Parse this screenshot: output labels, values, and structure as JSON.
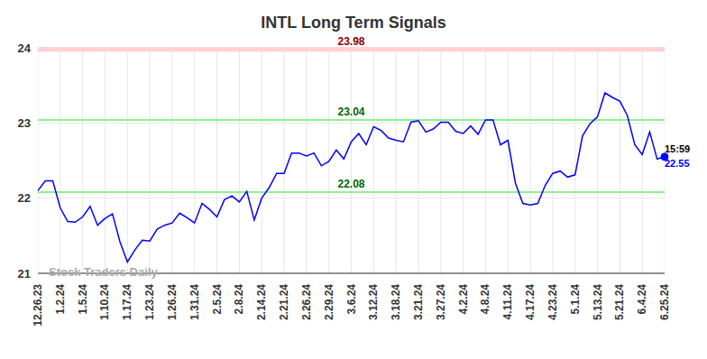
{
  "chart_data": {
    "type": "line",
    "title": "INTL Long Term Signals",
    "watermark": "Stock Traders Daily",
    "color": "#0000ff",
    "grid": true,
    "ylim": [
      21,
      24
    ],
    "yticks": [
      21,
      22,
      23,
      24
    ],
    "categories": [
      "12.26.23",
      null,
      null,
      "1.2.24",
      null,
      null,
      "1.5.24",
      null,
      null,
      "1.10.24",
      null,
      null,
      "1.17.24",
      null,
      null,
      "1.23.24",
      null,
      null,
      "1.26.24",
      null,
      null,
      "1.31.24",
      null,
      null,
      "2.5.24",
      null,
      null,
      "2.8.24",
      null,
      null,
      "2.14.24",
      null,
      null,
      "2.21.24",
      null,
      null,
      "2.26.24",
      null,
      null,
      "2.29.24",
      null,
      null,
      "3.6.24",
      null,
      null,
      "3.12.24",
      null,
      null,
      "3.18.24",
      null,
      null,
      "3.21.24",
      null,
      null,
      "3.27.24",
      null,
      null,
      "4.2.24",
      null,
      null,
      "4.8.24",
      null,
      null,
      "4.11.24",
      null,
      null,
      "4.17.24",
      null,
      null,
      "4.23.24",
      null,
      null,
      "5.1.24",
      null,
      null,
      "5.13.24",
      null,
      null,
      "5.21.24",
      null,
      null,
      "6.4.24",
      null,
      null,
      "6.25.24"
    ],
    "values": [
      22.1,
      22.23,
      22.23,
      21.87,
      21.69,
      21.68,
      21.75,
      21.89,
      21.64,
      21.73,
      21.79,
      21.42,
      21.15,
      21.31,
      21.44,
      21.43,
      21.59,
      21.64,
      21.67,
      21.8,
      21.74,
      21.67,
      21.93,
      21.85,
      21.75,
      21.98,
      22.03,
      21.95,
      22.09,
      21.71,
      22.0,
      22.14,
      22.33,
      22.33,
      22.6,
      22.6,
      22.56,
      22.6,
      22.43,
      22.49,
      22.64,
      22.52,
      22.75,
      22.86,
      22.71,
      22.95,
      22.9,
      22.8,
      22.77,
      22.75,
      23.01,
      23.03,
      22.88,
      22.92,
      23.01,
      23.01,
      22.89,
      22.86,
      22.96,
      22.85,
      23.04,
      23.04,
      22.71,
      22.77,
      22.2,
      21.93,
      21.91,
      21.93,
      22.17,
      22.33,
      22.36,
      22.28,
      22.31,
      22.83,
      22.99,
      23.08,
      23.4,
      23.34,
      23.29,
      23.1,
      22.71,
      22.58,
      22.88,
      22.52,
      22.55
    ],
    "annotations": [
      {
        "value": 23.98,
        "label": "23.98",
        "color": "#8b0000"
      },
      {
        "value": 23.04,
        "label": "23.04",
        "color": "#006400"
      },
      {
        "value": 22.08,
        "label": "22.08",
        "color": "#006400"
      }
    ],
    "end_annotation": {
      "time": "15:59",
      "value": 22.55
    }
  }
}
